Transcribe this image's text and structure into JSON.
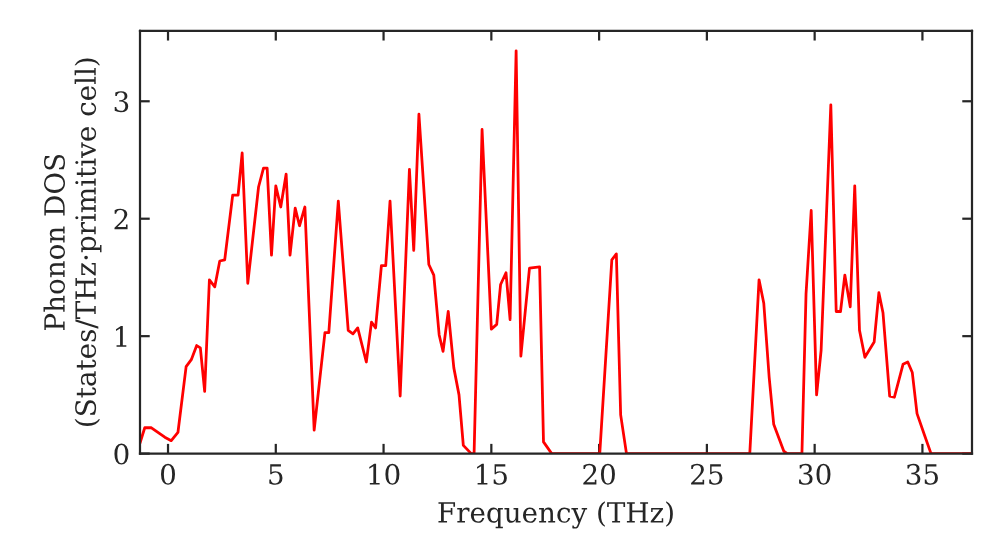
{
  "chart_data": {
    "type": "line",
    "xlabel": "Frequency (THz)",
    "ylabel": "Phonon DOS\n(States/THz·primitive cell)",
    "xlim": [
      -1.3,
      37.3
    ],
    "ylim": [
      0,
      3.6
    ],
    "xticks": [
      0,
      5,
      10,
      15,
      20,
      25,
      30,
      35
    ],
    "yticks": [
      0,
      1,
      2,
      3
    ],
    "grid": false,
    "marker": "none",
    "line_style": "solid",
    "series": [
      {
        "color": "#ff0000",
        "x": [
          -1.3,
          -1.08,
          -0.77,
          -0.15,
          0.15,
          0.46,
          0.84,
          1.08,
          1.33,
          1.5,
          1.7,
          1.92,
          2.17,
          2.4,
          2.63,
          3.0,
          3.25,
          3.44,
          3.7,
          4.2,
          4.43,
          4.6,
          4.8,
          5.0,
          5.23,
          5.48,
          5.66,
          5.9,
          6.1,
          6.35,
          6.78,
          7.28,
          7.46,
          7.9,
          8.36,
          8.58,
          8.8,
          9.2,
          9.44,
          9.63,
          9.9,
          10.1,
          10.3,
          10.77,
          11.2,
          11.4,
          11.64,
          12.1,
          12.33,
          12.58,
          12.76,
          13.0,
          13.26,
          13.5,
          13.7,
          14.07,
          14.2,
          14.57,
          15.0,
          15.25,
          15.43,
          15.68,
          15.87,
          16.15,
          16.37,
          16.77,
          17.24,
          17.42,
          17.8,
          20.03,
          20.59,
          20.8,
          21.0,
          21.27,
          26.99,
          27.42,
          27.64,
          27.89,
          28.1,
          28.57,
          28.73,
          29.41,
          29.6,
          29.84,
          30.09,
          30.3,
          30.75,
          31.0,
          31.2,
          31.4,
          31.65,
          31.86,
          32.08,
          32.33,
          32.76,
          32.98,
          33.17,
          33.48,
          33.7,
          34.1,
          34.32,
          34.53,
          34.75,
          35.09,
          35.4,
          37.3
        ],
        "values": [
          0.09,
          0.22,
          0.22,
          0.14,
          0.11,
          0.18,
          0.74,
          0.8,
          0.92,
          0.9,
          0.53,
          1.48,
          1.42,
          1.64,
          1.65,
          2.2,
          2.2,
          2.56,
          1.45,
          2.27,
          2.43,
          2.43,
          1.69,
          2.28,
          2.1,
          2.38,
          1.69,
          2.09,
          1.94,
          2.1,
          0.2,
          1.03,
          1.03,
          2.15,
          1.05,
          1.02,
          1.07,
          0.78,
          1.12,
          1.07,
          1.6,
          1.6,
          2.15,
          0.49,
          2.42,
          1.73,
          2.89,
          1.61,
          1.52,
          1.01,
          0.87,
          1.21,
          0.73,
          0.5,
          0.07,
          0,
          0,
          2.76,
          1.06,
          1.1,
          1.44,
          1.54,
          1.14,
          3.43,
          0.83,
          1.58,
          1.59,
          0.1,
          0,
          0,
          1.65,
          1.7,
          0.33,
          0,
          0,
          1.48,
          1.28,
          0.65,
          0.25,
          0.02,
          0,
          0,
          1.36,
          2.07,
          0.5,
          0.88,
          2.97,
          1.21,
          1.21,
          1.52,
          1.25,
          2.28,
          1.05,
          0.82,
          0.95,
          1.37,
          1.2,
          0.49,
          0.48,
          0.76,
          0.78,
          0.69,
          0.34,
          0.16,
          0,
          0
        ]
      }
    ]
  }
}
